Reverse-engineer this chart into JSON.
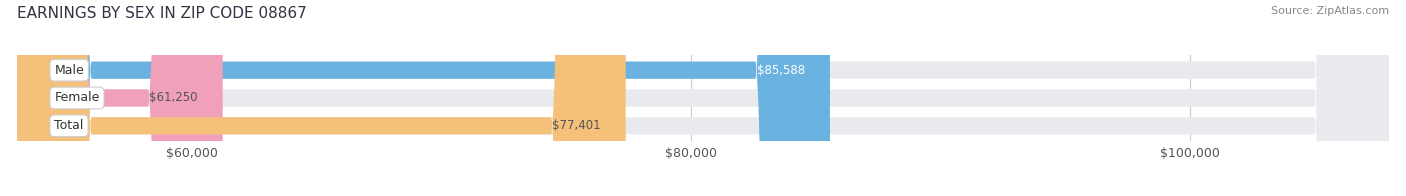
{
  "title": "EARNINGS BY SEX IN ZIP CODE 08867",
  "source": "Source: ZipAtlas.com",
  "categories": [
    "Male",
    "Female",
    "Total"
  ],
  "values": [
    85588,
    61250,
    77401
  ],
  "value_labels": [
    "$85,588",
    "$61,250",
    "$77,401"
  ],
  "bar_colors": [
    "#6ab3e0",
    "#f0a0b8",
    "#f5c07a"
  ],
  "bar_bg_color": "#e8eaed",
  "figure_bg": "#ffffff",
  "xlim_min": 53000,
  "xlim_max": 108000,
  "xticks": [
    60000,
    80000,
    100000
  ],
  "xtick_labels": [
    "$60,000",
    "$80,000",
    "$100,000"
  ],
  "background_color": "#ffffff",
  "bar_height": 0.62,
  "title_fontsize": 11,
  "tick_fontsize": 9,
  "value_fontsize": 8.5,
  "label_fontsize": 9,
  "value_label_colors": [
    "white",
    "#555555",
    "#555555"
  ]
}
